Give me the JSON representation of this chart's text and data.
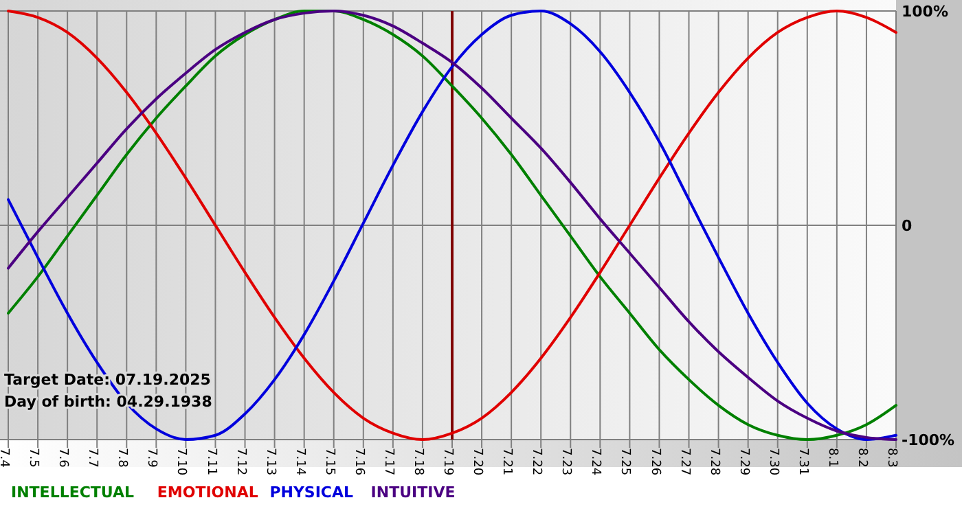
{
  "chart_data": {
    "type": "line",
    "categories": [
      "7.4",
      "7.5",
      "7.6",
      "7.7",
      "7.8",
      "7.9",
      "7.10",
      "7.11",
      "7.12",
      "7.13",
      "7.14",
      "7.15",
      "7.16",
      "7.17",
      "7.18",
      "7.19",
      "7.20",
      "7.21",
      "7.22",
      "7.23",
      "7.24",
      "7.25",
      "7.26",
      "7.27",
      "7.28",
      "7.29",
      "7.30",
      "7.31",
      "8.1",
      "8.2",
      "8.3"
    ],
    "series": [
      {
        "name": "INTELLECTUAL",
        "color": "#008000",
        "values": [
          -41,
          -24,
          -5,
          14,
          33,
          50,
          65,
          79,
          89,
          96,
          100,
          100,
          96,
          89,
          79,
          65,
          50,
          33,
          14,
          -5,
          -24,
          -41,
          -58,
          -72,
          -84,
          -93,
          -98,
          -100,
          -98,
          -93,
          -84
        ]
      },
      {
        "name": "EMOTIONAL",
        "color": "#e00000",
        "values": [
          100,
          97,
          90,
          78,
          62,
          43,
          22,
          0,
          -22,
          -43,
          -62,
          -78,
          -90,
          -97,
          -100,
          -97,
          -90,
          -78,
          -62,
          -43,
          -22,
          0,
          22,
          43,
          62,
          78,
          90,
          97,
          100,
          97,
          90
        ]
      },
      {
        "name": "PHYSICAL",
        "color": "#0000dd",
        "values": [
          12,
          -15,
          -41,
          -64,
          -83,
          -95,
          -100,
          -98,
          -88,
          -72,
          -51,
          -26,
          1,
          28,
          53,
          74,
          89,
          98,
          100,
          94,
          81,
          62,
          39,
          12,
          -15,
          -41,
          -64,
          -83,
          -95,
          -100,
          -98
        ]
      },
      {
        "name": "INTUITIVE",
        "color": "#4b0082",
        "values": [
          -20,
          -3,
          13,
          29,
          45,
          59,
          71,
          82,
          90,
          96,
          99,
          100,
          98,
          93,
          85,
          76,
          64,
          50,
          36,
          20,
          3,
          -13,
          -29,
          -45,
          -59,
          -71,
          -82,
          -90,
          -96,
          -99,
          -100
        ]
      }
    ],
    "ylim": [
      -100,
      100
    ],
    "yticks": [
      {
        "value": -100,
        "label": "-100%"
      },
      0,
      {
        "value": 100,
        "label": "100%"
      }
    ],
    "grid": true,
    "legend": "bottom left",
    "line_style": "solid",
    "marker": "none",
    "ref_lines": [
      {
        "axis": "x",
        "value": "7.19",
        "color": "#800000"
      }
    ],
    "annotations": [
      "Target Date: 07.19.2025",
      "Day of birth: 04.29.1938"
    ]
  }
}
